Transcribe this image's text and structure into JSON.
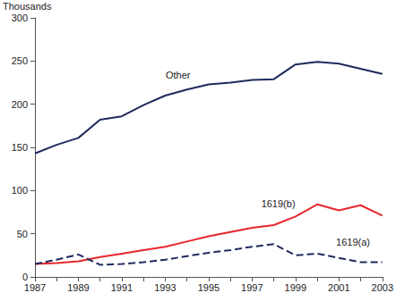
{
  "chart_data": {
    "type": "line",
    "y_label": "Thousands",
    "categories": [
      "1987",
      null,
      "1989",
      null,
      "1991",
      null,
      "1993",
      null,
      "1995",
      null,
      "1997",
      null,
      "1999",
      null,
      "2001",
      null,
      "2003"
    ],
    "series": [
      {
        "name": "Other",
        "color": "#1f2a5c",
        "line_style": "solid",
        "values": [
          143,
          153,
          161,
          182,
          186,
          199,
          210,
          217,
          223,
          225,
          228,
          229,
          246,
          249,
          247,
          241,
          235
        ]
      },
      {
        "name": "1619(b)",
        "color": "#e8262b",
        "line_style": "solid",
        "values": [
          15,
          16,
          18,
          23,
          27,
          31,
          35,
          41,
          47,
          52,
          57,
          60,
          70,
          84,
          77,
          83,
          71
        ]
      },
      {
        "name": "1619(a)",
        "color": "#1f2a5c",
        "line_style": "dashed",
        "values": [
          15,
          20,
          26,
          14,
          15,
          17,
          20,
          24,
          28,
          31,
          35,
          38,
          25,
          27,
          22,
          17,
          17
        ]
      }
    ],
    "ylim": [
      0,
      300
    ],
    "yticks": [
      0,
      50,
      100,
      150,
      200,
      250,
      300
    ],
    "grid": false
  }
}
